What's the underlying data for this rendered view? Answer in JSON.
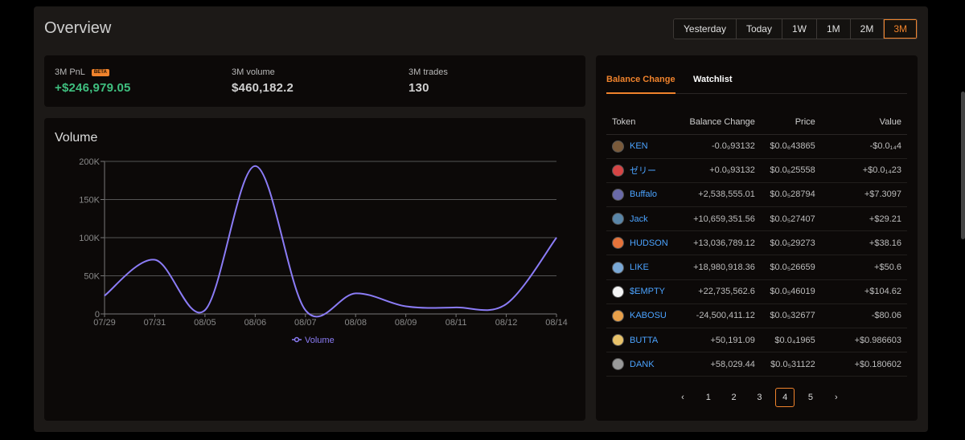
{
  "overview": {
    "title": "Overview"
  },
  "range": {
    "options": [
      "Yesterday",
      "Today",
      "1W",
      "1M",
      "2M",
      "3M"
    ],
    "selected": "3M"
  },
  "stats": {
    "pnl": {
      "label": "3M PnL",
      "badge": "BETA",
      "value": "+$246,979.05"
    },
    "volume": {
      "label": "3M volume",
      "value": "$460,182.2"
    },
    "trades": {
      "label": "3M trades",
      "value": "130"
    }
  },
  "volume_card": {
    "title": "Volume"
  },
  "chart_data": {
    "type": "line",
    "title": "Volume",
    "x": [
      "07/29",
      "07/31",
      "08/05",
      "08/06",
      "08/07",
      "08/08",
      "08/09",
      "08/11",
      "08/12",
      "08/14"
    ],
    "series": [
      {
        "name": "Volume",
        "values": [
          24000,
          71000,
          5000,
          194000,
          5000,
          27000,
          10000,
          8500,
          13000,
          100000
        ]
      }
    ],
    "ylim": [
      0,
      200000
    ],
    "yticks": [
      "0",
      "50K",
      "100K",
      "150K",
      "200K"
    ],
    "grid": true,
    "legend_position": "bottom",
    "line_color": "#8b7cf6"
  },
  "tokens": {
    "tabs": [
      "Balance Change",
      "Watchlist"
    ],
    "active_tab": "Balance Change",
    "columns": [
      "Token",
      "Balance Change",
      "Price",
      "Value"
    ],
    "rows": [
      {
        "name": "KEN",
        "change": "-0.0₉93132",
        "change_dir": "neg",
        "price": "$0.0₆43865",
        "value": "-$0.0₁₄4",
        "value_dir": "neg",
        "icon_color": "#7a5a3a"
      },
      {
        "name": "ゼリー",
        "change": "+0.0₉93132",
        "change_dir": "pos",
        "price": "$0.0₆25558",
        "value": "+$0.0₁₄23",
        "value_dir": "pos",
        "icon_color": "#d64545"
      },
      {
        "name": "Buffalo",
        "change": "+2,538,555.01",
        "change_dir": "pos",
        "price": "$0.0₅28794",
        "value": "+$7.3097",
        "value_dir": "pos",
        "icon_color": "#6a6aa8"
      },
      {
        "name": "Jack",
        "change": "+10,659,351.56",
        "change_dir": "pos",
        "price": "$0.0₅27407",
        "value": "+$29.21",
        "value_dir": "pos",
        "icon_color": "#5a86a8"
      },
      {
        "name": "HUDSON",
        "change": "+13,036,789.12",
        "change_dir": "pos",
        "price": "$0.0₅29273",
        "value": "+$38.16",
        "value_dir": "pos",
        "icon_color": "#e6733a"
      },
      {
        "name": "LIKE",
        "change": "+18,980,918.36",
        "change_dir": "pos",
        "price": "$0.0₅26659",
        "value": "+$50.6",
        "value_dir": "pos",
        "icon_color": "#7aa8d6"
      },
      {
        "name": "$EMPTY",
        "change": "+22,735,562.6",
        "change_dir": "pos",
        "price": "$0.0₅46019",
        "value": "+$104.62",
        "value_dir": "pos",
        "icon_color": "#f4f4f4"
      },
      {
        "name": "KABOSU",
        "change": "-24,500,411.12",
        "change_dir": "neg",
        "price": "$0.0₅32677",
        "value": "-$80.06",
        "value_dir": "neg",
        "icon_color": "#e8a04a"
      },
      {
        "name": "BUTTA",
        "change": "+50,191.09",
        "change_dir": "pos",
        "price": "$0.0₄1965",
        "value": "+$0.986603",
        "value_dir": "pos",
        "icon_color": "#e8c26a"
      },
      {
        "name": "DANK",
        "change": "+58,029.44",
        "change_dir": "pos",
        "price": "$0.0₅31122",
        "value": "+$0.180602",
        "value_dir": "pos",
        "icon_color": "#9a9a9a"
      }
    ]
  },
  "pagination": {
    "prev": "‹",
    "pages": [
      "1",
      "2",
      "3",
      "4",
      "5"
    ],
    "current": "4",
    "next": "›"
  }
}
